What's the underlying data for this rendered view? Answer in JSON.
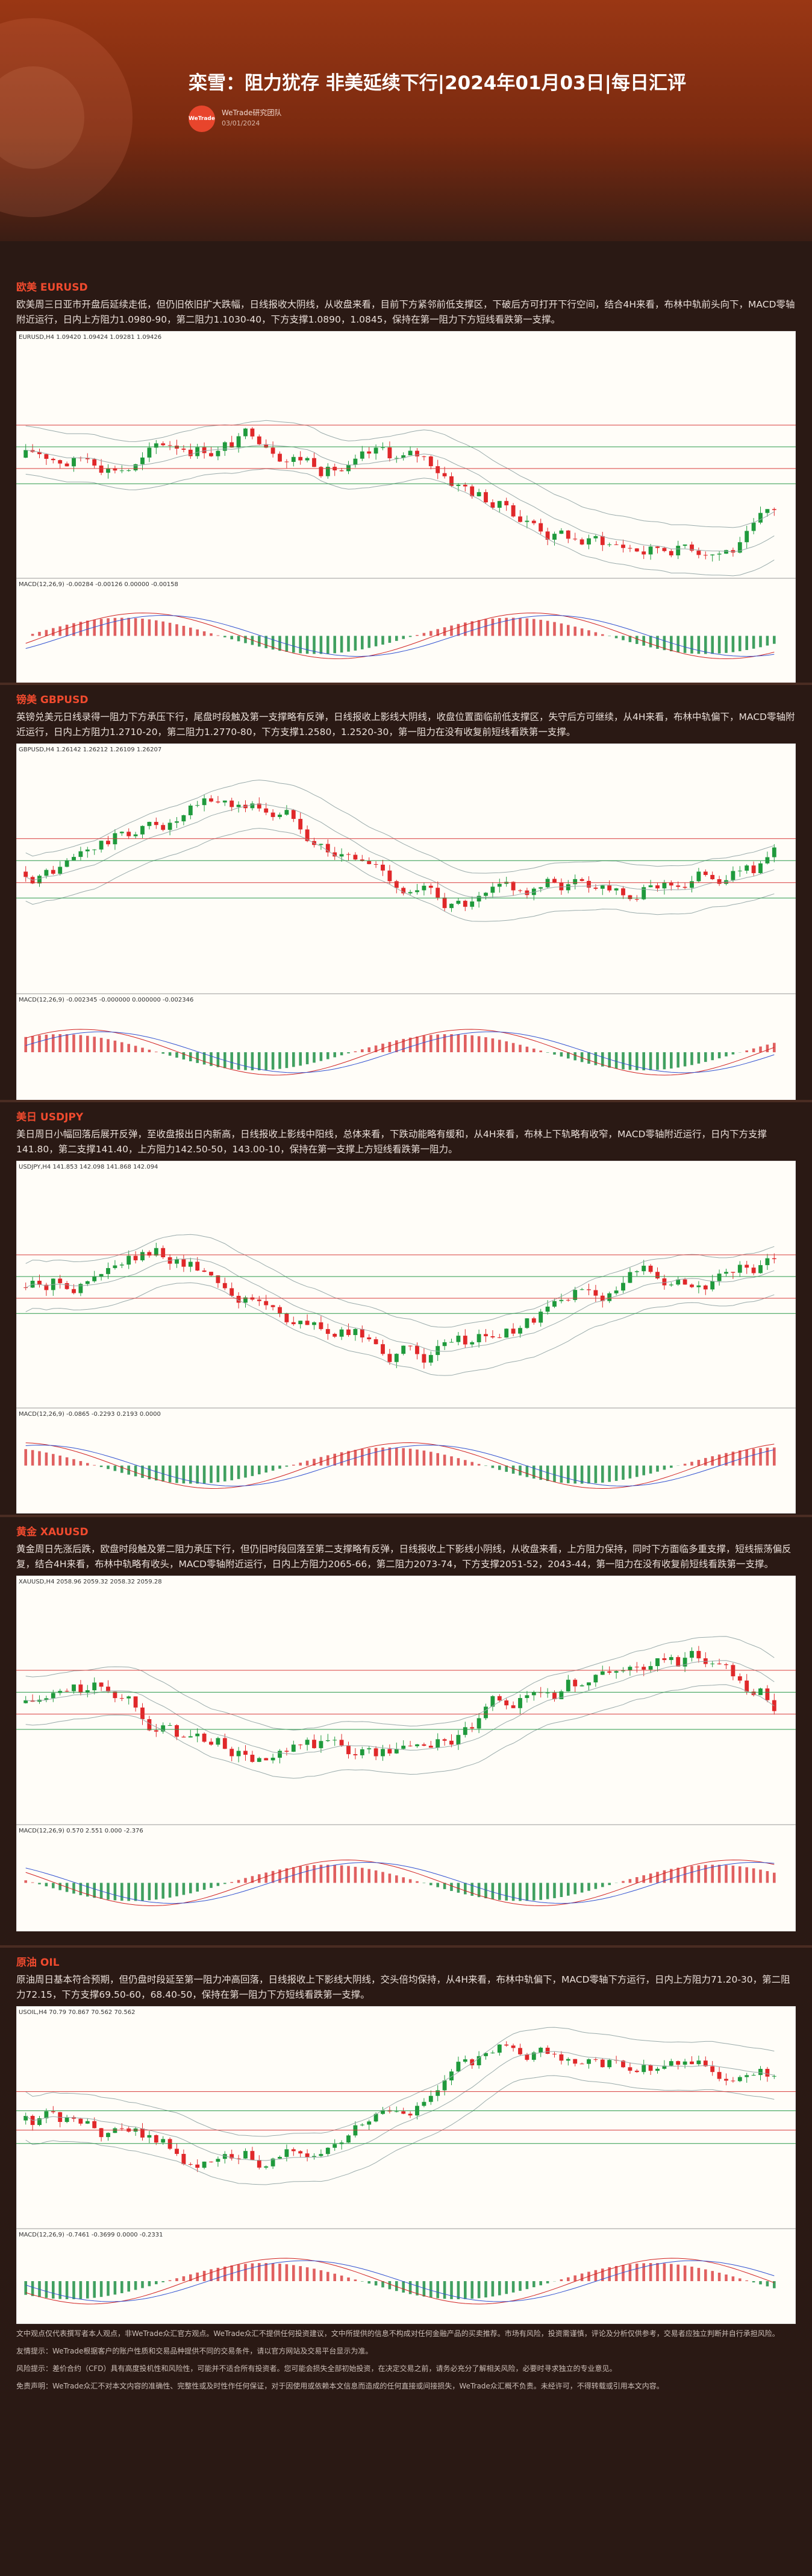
{
  "header": {
    "title": "栾雪：阻力犹存 非美延续下行|2024年01月03日|每日汇评",
    "logo": "WeTrade",
    "author": "WeTrade研究团队",
    "date": "03/01/2024"
  },
  "sections": [
    {
      "label": "欧美 EURUSD",
      "body": "欧美周三日亚市开盘后延续走低，但仍旧依旧扩大跌幅，日线报收大阴线，从收盘来看，目前下方紧邻前低支撑区，下破后方可打开下行空间，结合4H来看，布林中轨前头向下，MACD零轴附近运行，日内上方阻力1.0980-90，第二阻力1.1030-40，下方支撑1.0890，1.0845，保持在第一阻力下方短线看跌第一支撑。",
      "chart_header": "EURUSD,H4  1.09420 1.09424 1.09281 1.09426",
      "macd_header": "MACD(12,26,9) -0.00284 -0.00126 0.00000 -0.00158"
    },
    {
      "label": "镑美 GBPUSD",
      "body": "英镑兑美元日线录得一阻力下方承压下行，尾盘时段触及第一支撑略有反弹，日线报收上影线大阴线，收盘位置面临前低支撑区，失守后方可继续，从4H来看，布林中轨偏下，MACD零轴附近运行，日内上方阻力1.2710-20，第二阻力1.2770-80，下方支撑1.2580，1.2520-30，第一阻力在没有收复前短线看跌第一支撑。",
      "chart_header": "GBPUSD,H4  1.26142 1.26212 1.26109 1.26207",
      "macd_header": "MACD(12,26,9) -0.002345 -0.000000 0.000000 -0.002346"
    },
    {
      "label": "美日 USDJPY",
      "body": "美日周日小幅回落后展开反弹，至收盘报出日内新高，日线报收上影线中阳线，总体来看，下跌动能略有缓和，从4H来看，布林上下轨略有收窄，MACD零轴附近运行，日内下方支撑141.80，第二支撑141.40，上方阻力142.50-50，143.00-10，保持在第一支撑上方短线看跌第一阻力。",
      "chart_header": "USDJPY,H4  141.853 142.098 141.868 142.094",
      "macd_header": "MACD(12,26,9) -0.0865 -0.2293 0.2193 0.0000"
    },
    {
      "label": "黄金 XAUUSD",
      "body": "黄金周日先涨后跌，欧盘时段触及第二阻力承压下行，但仍旧时段回落至第二支撑略有反弹，日线报收上下影线小阴线，从收盘来看，上方阻力保持，同时下方面临多重支撑，短线振荡偏反复，结合4H来看，布林中轨略有收头，MACD零轴附近运行，日内上方阻力2065-66，第二阻力2073-74，下方支撑2051-52，2043-44，第一阻力在没有收复前短线看跌第一支撑。",
      "chart_header": "XAUUSD,H4  2058.96 2059.32 2058.32 2059.28",
      "macd_header": "MACD(12,26,9) 0.570 2.551 0.000 -2.376"
    },
    {
      "label": "原油 OIL",
      "body": "原油周日基本符合预期，但仍盘时段延至第一阻力冲高回落，日线报收上下影线大阴线，交头倍均保持，从4H来看，布林中轨偏下，MACD零轴下方运行，日内上方阻力71.20-30，第二阻力72.15，下方支撑69.50-60，68.40-50，保持在第一阻力下方短线看跌第一支撑。",
      "chart_header": "USOIL,H4  70.79 70.867 70.562 70.562",
      "macd_header": "MACD(12,26,9) -0.7461 -0.3699 0.0000 -0.2331"
    }
  ],
  "footer": [
    "文中观点仅代表撰写者本人观点，非WeTrade众汇官方观点。WeTrade众汇不提供任何投资建议，文中所提供的信息不构成对任何金融产品的买卖推荐。市场有风险，投资需谨慎，评论及分析仅供参考，交易者应独立判断并自行承担风险。",
    "友情提示：WeTrade根据客户的账户性质和交易品种提供不同的交易条件，请以官方网站及交易平台显示为准。",
    "风险提示：差价合约（CFD）具有高度投机性和风险性，可能并不适合所有投资者。您可能会损失全部初始投资，在决定交易之前，请务必充分了解相关风险，必要时寻求独立的专业意见。",
    "免责声明：WeTrade众汇不对本文内容的准确性、完整性或及时性作任何保证，对于因使用或依赖本文信息而造成的任何直接或间接损失，WeTrade众汇概不负责。未经许可，不得转载或引用本文内容。"
  ]
}
